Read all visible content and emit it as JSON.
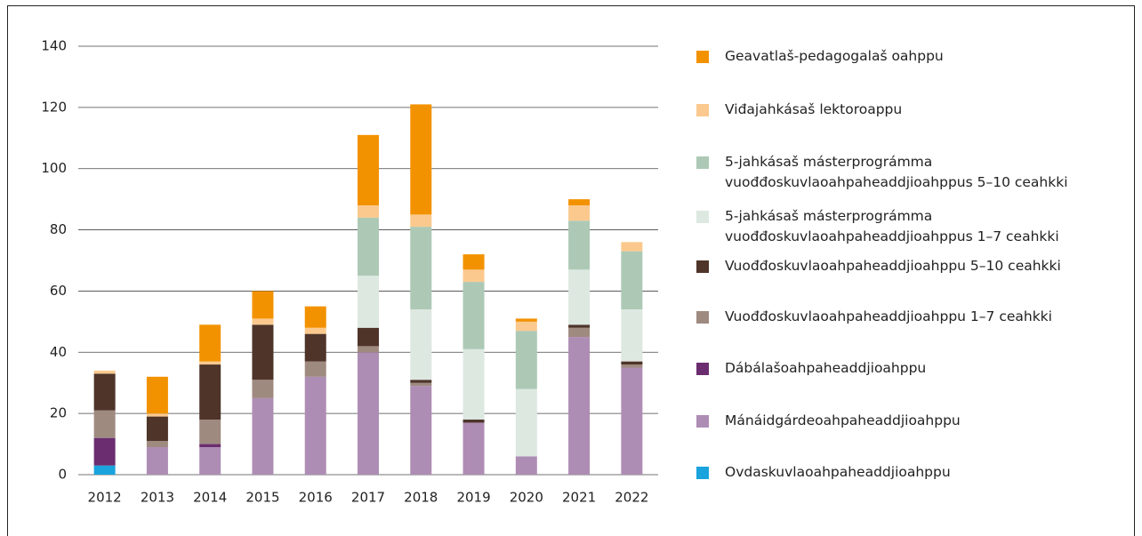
{
  "chart_data": {
    "type": "stacked_bar",
    "categories": [
      "2012",
      "2013",
      "2014",
      "2015",
      "2016",
      "2017",
      "2018",
      "2019",
      "2020",
      "2021",
      "2022"
    ],
    "ylim": [
      0,
      140
    ],
    "yticks": [
      0,
      20,
      40,
      60,
      80,
      100,
      120,
      140
    ],
    "grid": true,
    "series": [
      {
        "name": "Ovdaskuvlaoahpaheaddjioahppu",
        "color": "#1aa3dc",
        "values": [
          3,
          0,
          0,
          0,
          0,
          0,
          0,
          0,
          0,
          0,
          0
        ]
      },
      {
        "name": "Mánáidgárdeoahpaheaddjioahppu",
        "color": "#ae8db4",
        "values": [
          0,
          9,
          9,
          25,
          32,
          40,
          29,
          17,
          6,
          45,
          35
        ]
      },
      {
        "name": "Dábálašoahpaheaddjioahppu",
        "color": "#6b2d6f",
        "values": [
          9,
          0,
          1,
          0,
          0,
          0,
          0,
          0,
          0,
          0,
          0
        ]
      },
      {
        "name": "Vuođđoskuvlaoahpaheaddjioahppu 1–7 ceahkki",
        "color": "#9f8a80",
        "values": [
          9,
          2,
          8,
          6,
          5,
          2,
          1,
          0,
          0,
          3,
          1
        ]
      },
      {
        "name": "Vuođđoskuvlaoahpaheaddjioahppu 5–10 ceahkki",
        "color": "#4e3429",
        "values": [
          12,
          8,
          18,
          18,
          9,
          6,
          1,
          1,
          0,
          1,
          1
        ]
      },
      {
        "name": "5-jahkásaš másterprográmma vuođđoskuvlaoahpaheaddjioahppus 1–7 ceahkki",
        "color": "#dde8e1",
        "values": [
          0,
          0,
          0,
          0,
          0,
          17,
          23,
          23,
          22,
          18,
          17
        ]
      },
      {
        "name": "5-jahkásaš másterprográmma vuođđoskuvlaoahpaheaddjioahppus 5–10 ceahkki",
        "color": "#adc9b6",
        "values": [
          0,
          0,
          0,
          0,
          0,
          19,
          27,
          22,
          19,
          16,
          19
        ]
      },
      {
        "name": "Viđajahkásaš lektoroappu",
        "color": "#fbc98e",
        "values": [
          1,
          1,
          1,
          2,
          2,
          4,
          4,
          4,
          3,
          5,
          3
        ]
      },
      {
        "name": "Geavatlaš-pedagogalaš oahppu",
        "color": "#f39200",
        "values": [
          0,
          12,
          12,
          9,
          7,
          23,
          36,
          5,
          1,
          2,
          0
        ]
      }
    ]
  }
}
